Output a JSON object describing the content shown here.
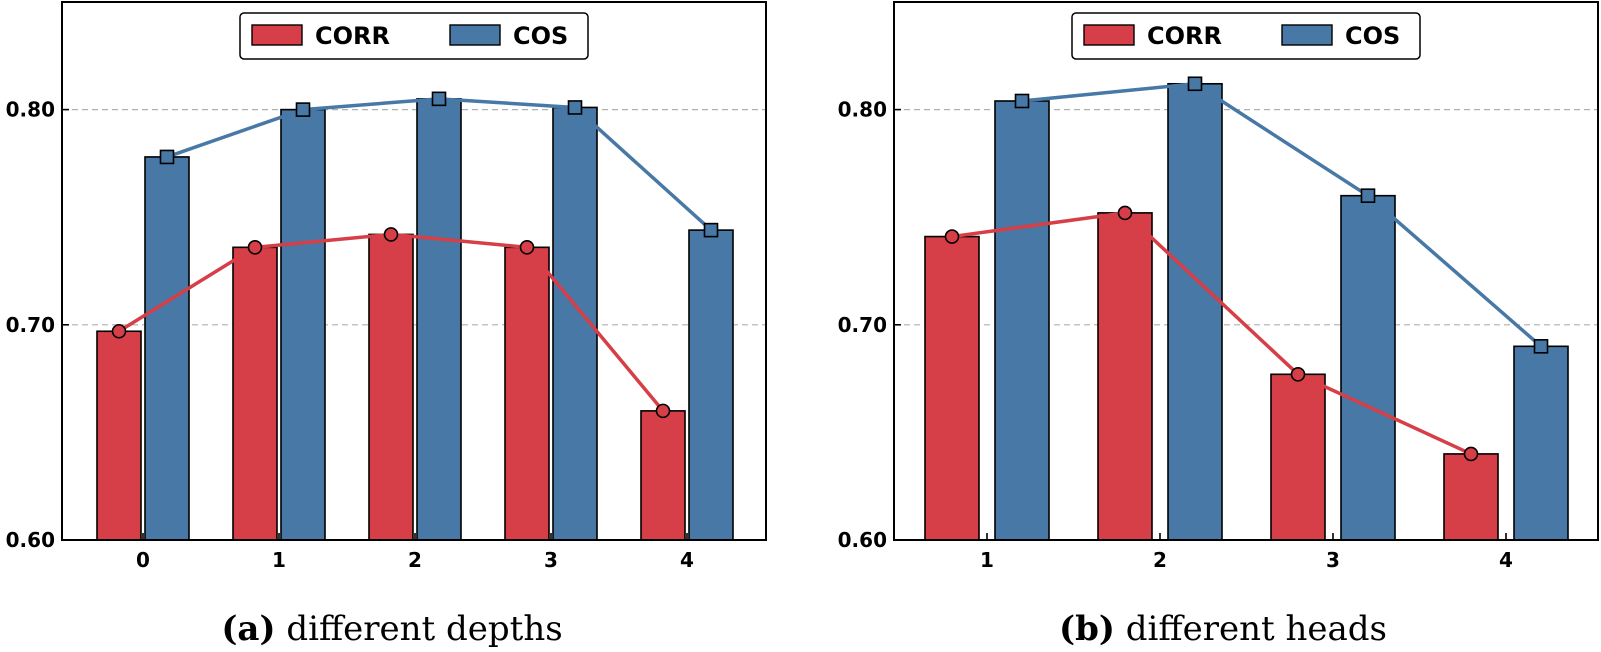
{
  "colors": {
    "corr": "#d63f47",
    "cos": "#4878a6",
    "grid": "#b0b0b0"
  },
  "chart_data": [
    {
      "type": "bar",
      "categories": [
        "0",
        "1",
        "2",
        "3",
        "4"
      ],
      "series": [
        {
          "name": "CORR",
          "values": [
            0.697,
            0.736,
            0.742,
            0.736,
            0.66
          ],
          "marker": "circle"
        },
        {
          "name": "COS",
          "values": [
            0.778,
            0.8,
            0.805,
            0.801,
            0.744
          ],
          "marker": "square"
        }
      ],
      "overlay": "line-with-markers",
      "ylim": [
        0.6,
        0.85
      ],
      "yticks": [
        "0.60",
        "0.70",
        "0.80"
      ],
      "grid": "horizontal dashed at 0.70 and 0.80",
      "legend": "top-center",
      "caption_label": "(a)",
      "caption_text": "different depths"
    },
    {
      "type": "bar",
      "categories": [
        "1",
        "2",
        "3",
        "4"
      ],
      "series": [
        {
          "name": "CORR",
          "values": [
            0.741,
            0.752,
            0.677,
            0.64
          ],
          "marker": "circle"
        },
        {
          "name": "COS",
          "values": [
            0.804,
            0.812,
            0.76,
            0.69
          ],
          "marker": "square"
        }
      ],
      "overlay": "line-with-markers",
      "ylim": [
        0.6,
        0.85
      ],
      "yticks": [
        "0.60",
        "0.70",
        "0.80"
      ],
      "grid": "horizontal dashed at 0.70 and 0.80",
      "legend": "top-center",
      "caption_label": "(b)",
      "caption_text": "different heads"
    }
  ]
}
